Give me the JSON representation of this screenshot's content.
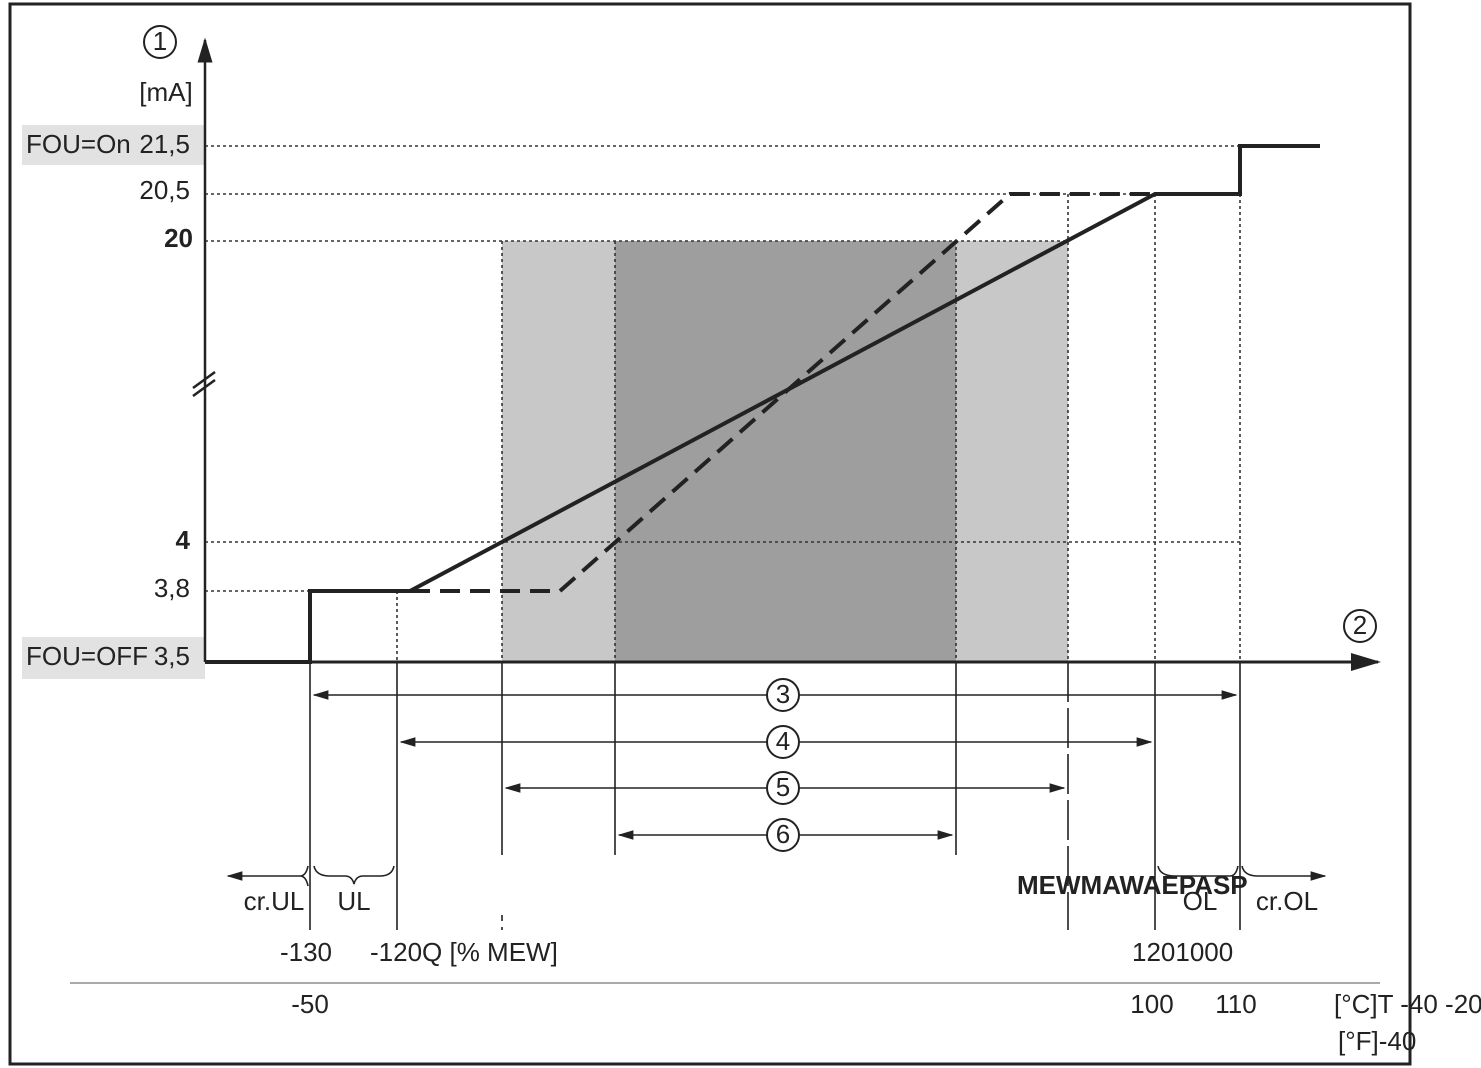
{
  "y_marker": "1",
  "y_unit": "[mA]",
  "x_marker": "2",
  "fou_on": "FOU=On",
  "fou_off": "FOU=OFF",
  "y_labels": [
    "21,5",
    "20,5",
    "20",
    "4",
    "3,8",
    "3,5"
  ],
  "ranges": [
    "3",
    "4",
    "5",
    "6"
  ],
  "zones": [
    "cr.UL",
    "UL",
    "OL",
    "cr.OL"
  ],
  "overlay": "MEWMAWAEPASP",
  "q_labels": [
    "-130",
    "-120Q [% MEW]",
    "1201000"
  ],
  "t_labels": [
    "-50",
    "100",
    "110",
    "[°C]T -40 -20"
  ],
  "f_label": "[°F]-40"
}
